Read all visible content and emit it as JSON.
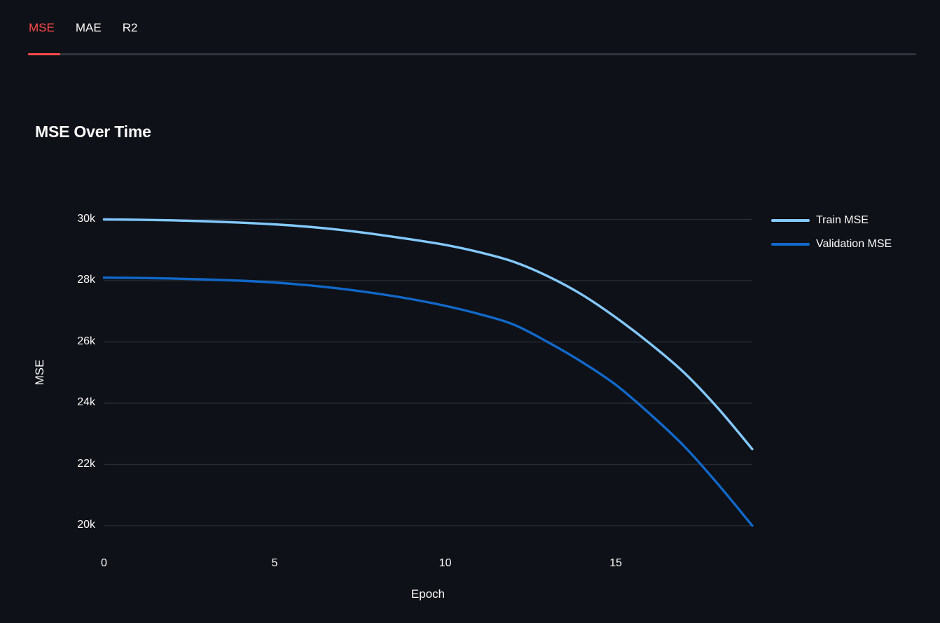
{
  "tabs": {
    "items": [
      {
        "label": "MSE",
        "active": true
      },
      {
        "label": "MAE",
        "active": false
      },
      {
        "label": "R2",
        "active": false
      }
    ]
  },
  "colors": {
    "background": "#0e1117",
    "text": "#fafafa",
    "accent_red": "#ff4b4b",
    "tab_divider": "#31343c",
    "gridline": "#262a33"
  },
  "chart_data": {
    "type": "line",
    "title": "MSE Over Time",
    "xlabel": "Epoch",
    "ylabel": "MSE",
    "x": [
      0,
      1,
      2,
      3,
      4,
      5,
      6,
      7,
      8,
      9,
      10,
      11,
      12,
      13,
      14,
      15,
      16,
      17,
      18,
      19
    ],
    "series": [
      {
        "name": "Train MSE",
        "color": "#83c9ff",
        "values": [
          30000,
          29990,
          29970,
          29940,
          29895,
          29840,
          29760,
          29650,
          29510,
          29350,
          29170,
          28930,
          28620,
          28150,
          27550,
          26800,
          25950,
          25000,
          23830,
          22500
        ]
      },
      {
        "name": "Validation MSE",
        "color": "#1168c9",
        "values": [
          28100,
          28090,
          28070,
          28040,
          28000,
          27940,
          27850,
          27730,
          27580,
          27400,
          27180,
          26910,
          26570,
          26000,
          25350,
          24600,
          23650,
          22600,
          21350,
          20000
        ]
      }
    ],
    "xlim": [
      0,
      19
    ],
    "ylim": [
      20000,
      30000
    ],
    "xticks": {
      "values": [
        0,
        5,
        10,
        15
      ],
      "labels": [
        "0",
        "5",
        "10",
        "15"
      ]
    },
    "yticks": {
      "values": [
        20000,
        22000,
        24000,
        26000,
        28000,
        30000
      ],
      "labels": [
        "20k",
        "22k",
        "24k",
        "26k",
        "28k",
        "30k"
      ]
    },
    "grid": "horizontal",
    "legend_position": "right"
  }
}
